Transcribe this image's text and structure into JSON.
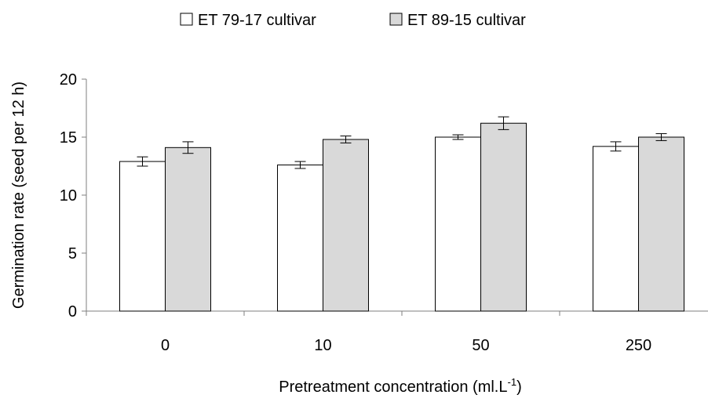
{
  "chart_data": {
    "type": "bar",
    "title": "",
    "xlabel": "Pretreatment concentration (ml.L",
    "xlabel_superscript": "-1",
    "xlabel_suffix": ")",
    "ylabel": "Germination rate (seed per 12 h)",
    "categories": [
      "0",
      "10",
      "50",
      "250"
    ],
    "ylim": [
      0,
      20
    ],
    "yticks": [
      0,
      5,
      10,
      15,
      20
    ],
    "grid": false,
    "legend_position": "top-center",
    "error_bars": true,
    "series": [
      {
        "name": "ET 79-17 cultivar",
        "color": "#ffffff",
        "values": [
          12.9,
          12.6,
          15.0,
          14.2
        ],
        "errors": [
          0.4,
          0.3,
          0.2,
          0.4
        ]
      },
      {
        "name": "ET 89-15 cultivar",
        "color": "#d9d9d9",
        "values": [
          14.1,
          14.8,
          16.2,
          15.0
        ],
        "errors": [
          0.5,
          0.3,
          0.55,
          0.3
        ]
      }
    ]
  }
}
